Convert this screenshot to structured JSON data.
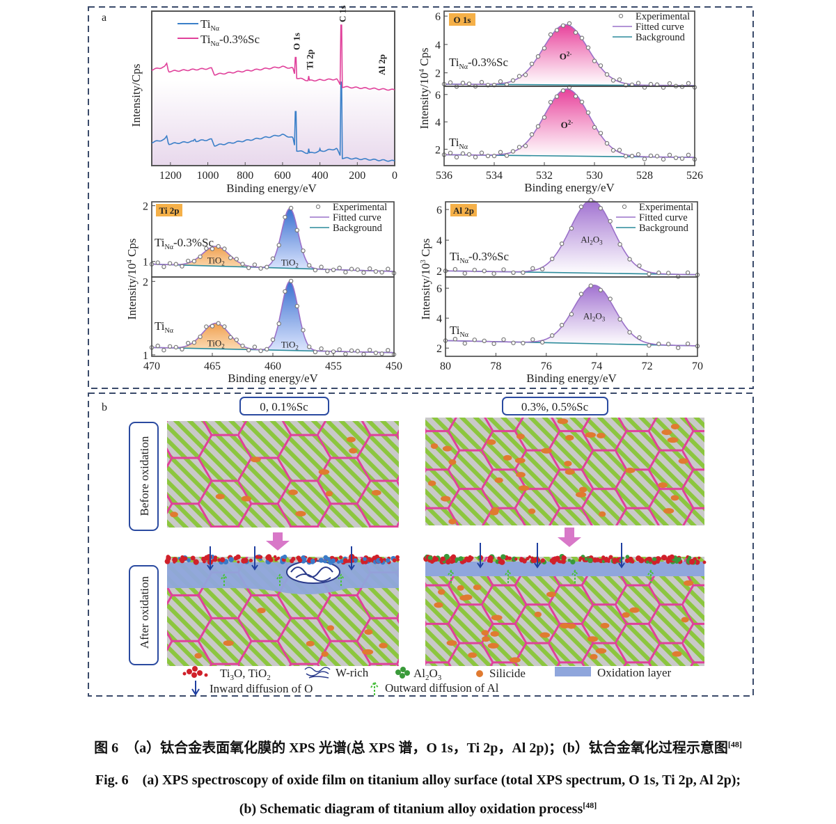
{
  "panel_a_label": "a",
  "panel_b_label": "b",
  "chart_data": [
    {
      "type": "line",
      "title": "",
      "xlabel": "Binding energy/eV",
      "ylabel": "Intensity/Cps",
      "xlim": [
        1300,
        0
      ],
      "xticks": [
        "1200",
        "1000",
        "800",
        "600",
        "400",
        "200",
        "0"
      ],
      "y_ticks_shown": false,
      "legend": "top-left",
      "series": [
        {
          "name_main": "Ti",
          "name_sub": "Nα",
          "name_suffix": "",
          "color": "#3a7fc8",
          "baseline": [
            [
              1300,
              15
            ],
            [
              1230,
              17
            ],
            [
              1220,
              19
            ],
            [
              1210,
              14
            ],
            [
              980,
              17
            ],
            [
              965,
              13
            ],
            [
              600,
              20
            ],
            [
              545,
              18
            ],
            [
              530,
              10
            ],
            [
              460,
              8
            ],
            [
              310,
              11
            ],
            [
              290,
              6
            ],
            [
              280,
              5
            ],
            [
              0,
              3
            ]
          ],
          "spikes": [
            [
              531,
              35
            ],
            [
              285,
              54
            ],
            [
              460,
              11
            ],
            [
              400,
              11
            ],
            [
              1070,
              17
            ]
          ]
        },
        {
          "name_main": "Ti",
          "name_sub": "Nα",
          "name_suffix": "-0.3%Sc",
          "color": "#e0409a",
          "baseline": [
            [
              1300,
              62
            ],
            [
              1230,
              64
            ],
            [
              1220,
              66
            ],
            [
              1210,
              61
            ],
            [
              980,
              63
            ],
            [
              965,
              59
            ],
            [
              600,
              64
            ],
            [
              545,
              63
            ],
            [
              530,
              57
            ],
            [
              460,
              55
            ],
            [
              310,
              56
            ],
            [
              290,
              52
            ],
            [
              280,
              51
            ],
            [
              0,
              49
            ]
          ],
          "spikes": [
            [
              531,
              70
            ],
            [
              285,
              91
            ],
            [
              460,
              58
            ],
            [
              345,
              56
            ]
          ]
        }
      ],
      "peak_labels": [
        {
          "text": "O 1s",
          "x": 531
        },
        {
          "text": "Ti 2p",
          "x": 460
        },
        {
          "text": "C 1s",
          "x": 285
        },
        {
          "text": "Al 2p",
          "x": 75
        }
      ]
    },
    {
      "type": "line",
      "tag": "O 1s",
      "xlabel": "Binding energy/eV",
      "ylabel_main": "Intensity/10",
      "ylabel_sup": "4",
      "ylabel_suffix": " Cps",
      "xlim": [
        536,
        526
      ],
      "xticks": [
        "536",
        "534",
        "532",
        "530",
        "528",
        "526"
      ],
      "legend": "top-right",
      "legend_entries": [
        "Experimental",
        "Fitted curve",
        "Background"
      ],
      "panels": [
        {
          "sample_main": "Ti",
          "sample_sub": "Nα",
          "sample_suffix": "-0.3%Sc",
          "ylim": [
            1.05,
            6.35
          ],
          "yticks": [
            "2",
            "4",
            "6"
          ],
          "background": [
            1.2,
            1.1
          ],
          "peaks": [
            {
              "label_main": "O",
              "label_sup": "2-",
              "center": 531.15,
              "height": 5.4,
              "fwhm": 2.1
            }
          ]
        },
        {
          "sample_main": "Ti",
          "sample_sub": "Nα",
          "sample_suffix": "",
          "ylim": [
            0.8,
            6.6
          ],
          "yticks": [
            "2",
            "4",
            "6"
          ],
          "background": [
            1.6,
            1.4
          ],
          "peaks": [
            {
              "label_main": "O",
              "label_sup": "2-",
              "center": 531.1,
              "height": 6.4,
              "fwhm": 2.1
            }
          ]
        }
      ],
      "fill_color": "#e8409a"
    },
    {
      "type": "line",
      "tag": "Ti 2p",
      "xlabel": "Binding energy/eV",
      "ylabel_main": "Intensity/10",
      "ylabel_sup": "4",
      "ylabel_suffix": " Cps",
      "xlim": [
        470,
        450
      ],
      "xticks": [
        "470",
        "465",
        "460",
        "455",
        "450"
      ],
      "legend": "top-right",
      "legend_entries": [
        "Experimental",
        "Fitted curve",
        "Background"
      ],
      "panels": [
        {
          "sample_main": "Ti",
          "sample_sub": "Nα",
          "sample_suffix": "-0.3%Sc",
          "ylim": [
            0.72,
            2.07
          ],
          "yticks": [
            "1",
            "2"
          ],
          "background": [
            0.95,
            0.82
          ],
          "peaks": [
            {
              "label_main": "TiO",
              "label_sub": "2",
              "center": 464.7,
              "height": 1.27,
              "fwhm": 2.6,
              "color": "#f0a050"
            },
            {
              "label_main": "TiO",
              "label_sub": "2",
              "center": 458.6,
              "height": 1.95,
              "fwhm": 1.6,
              "color": "#4a80d0"
            }
          ]
        },
        {
          "sample_main": "Ti",
          "sample_sub": "Nα",
          "sample_suffix": "",
          "ylim": [
            0.98,
            2.06
          ],
          "yticks": [
            "1",
            "2"
          ],
          "background": [
            1.1,
            1.03
          ],
          "peaks": [
            {
              "label_main": "TiO",
              "label_sub": "2",
              "center": 464.7,
              "height": 1.43,
              "fwhm": 2.6,
              "color": "#f0a050"
            },
            {
              "label_main": "TiO",
              "label_sub": "2",
              "center": 458.6,
              "height": 2.0,
              "fwhm": 1.6,
              "color": "#4a80d0"
            }
          ]
        }
      ]
    },
    {
      "type": "line",
      "tag": "Al 2p",
      "xlabel": "Binding energy/eV",
      "ylabel_main": "Intensity/10",
      "ylabel_sup": "3",
      "ylabel_suffix": " Cps",
      "xlim": [
        80,
        70
      ],
      "xticks": [
        "80",
        "78",
        "76",
        "74",
        "72",
        "70"
      ],
      "legend": "top-right",
      "legend_entries": [
        "Experimental",
        "Fitted curve",
        "Background"
      ],
      "panels": [
        {
          "sample_main": "Ti",
          "sample_sub": "Nα",
          "sample_suffix": "-0.3%Sc",
          "ylim": [
            1.6,
            6.5
          ],
          "yticks": [
            "2",
            "4",
            "6"
          ],
          "background": [
            2.0,
            1.75
          ],
          "peaks": [
            {
              "label_main": "Al",
              "label_sub": "2",
              "label_main2": "O",
              "label_sub2": "3",
              "center": 74.2,
              "height": 6.6,
              "fwhm": 2.0
            }
          ]
        },
        {
          "sample_main": "Ti",
          "sample_sub": "Nα",
          "sample_suffix": "",
          "ylim": [
            1.45,
            6.75
          ],
          "yticks": [
            "2",
            "4",
            "6"
          ],
          "background": [
            2.5,
            2.15
          ],
          "peaks": [
            {
              "label_main": "Al",
              "label_sub": "2",
              "label_main2": "O",
              "label_sub2": "3",
              "center": 74.1,
              "height": 6.2,
              "fwhm": 1.9
            }
          ]
        }
      ],
      "fill_color": "#a070d0"
    }
  ],
  "schematic": {
    "left_title": "0, 0.1%Sc",
    "right_title": "0.3%, 0.5%Sc",
    "row_before": "Before oxidation",
    "row_after": "After oxidation",
    "legend": {
      "ti_oxide_main": "Ti",
      "ti_oxide_sub1": "3",
      "ti_oxide_mid": "O, TiO",
      "ti_oxide_sub2": "2",
      "w_rich": "W-rich",
      "al2o3_main": "Al",
      "al2o3_sub1": "2",
      "al2o3_mid": "O",
      "al2o3_sub2": "3",
      "silicide": "Silicide",
      "oxidation_layer": "Oxidation layer",
      "inward": "Inward diffusion of O",
      "outward": "Outward diffusion of Al"
    },
    "colors": {
      "grain_boundary": "#e0409a",
      "stripe": "#8cc63f",
      "matrix": "#c9c9c9",
      "silicide": "#e07a30",
      "oxide_layer": "#8fa6dc",
      "ti_oxide": "#d0202a",
      "al2o3": "#3a9a3a",
      "inward_arrow": "#1f3fa0",
      "outward_arrow": "#4cc040"
    }
  },
  "caption": {
    "cn": "图 6　（a）钛合金表面氧化膜的 XPS 光谱(总 XPS 谱，O 1s，Ti 2p，Al 2p)；(b）钛合金氧化过程示意图",
    "cn_ref": "[48]",
    "en1": "Fig. 6　(a) XPS spectroscopy of oxide film on titanium alloy surface (total XPS spectrum, O 1s, Ti 2p, Al 2p);",
    "en2": "(b) Schematic diagram of titanium alloy oxidation process",
    "en2_ref": "[48]"
  }
}
